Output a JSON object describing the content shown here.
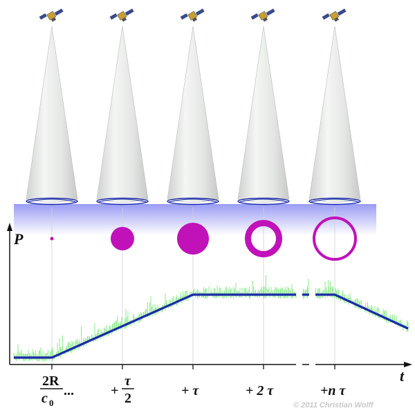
{
  "diagram": {
    "y_axis_label": "P",
    "x_axis_label": "t",
    "tick_labels": [
      {
        "prefix": "",
        "numerator": "2R",
        "denominator_base": "c",
        "denominator_sub": "0",
        "suffix": "..."
      },
      {
        "prefix": "+",
        "numerator": "τ",
        "denominator_base": "2",
        "denominator_sub": "",
        "suffix": ""
      },
      {
        "prefix": "+ τ",
        "numerator": "",
        "denominator_base": "",
        "denominator_sub": "",
        "suffix": ""
      },
      {
        "prefix": "+ 2 τ",
        "numerator": "",
        "denominator_base": "",
        "denominator_sub": "",
        "suffix": ""
      },
      {
        "prefix": "+n τ",
        "numerator": "",
        "denominator_base": "",
        "denominator_sub": "",
        "suffix": ""
      }
    ],
    "credit": "© 2011 Christian Wolff",
    "colors": {
      "cone_fill": "#e6e8e6",
      "ground_top": "#9a9cf4",
      "ground_bottom": "#ffffff",
      "footprint_ring": "#1a2aa8",
      "spot": "#c012b8",
      "signal": "#1a2aa8",
      "noise": "#55dd55",
      "axis": "#111111",
      "guide": "#d0d0d0"
    },
    "spots": [
      {
        "kind": "dot"
      },
      {
        "kind": "disk"
      },
      {
        "kind": "disk"
      },
      {
        "kind": "ring"
      },
      {
        "kind": "ring"
      }
    ],
    "satellites": [
      "satellite-icon",
      "satellite-icon",
      "satellite-icon",
      "satellite-icon",
      "satellite-icon"
    ]
  }
}
